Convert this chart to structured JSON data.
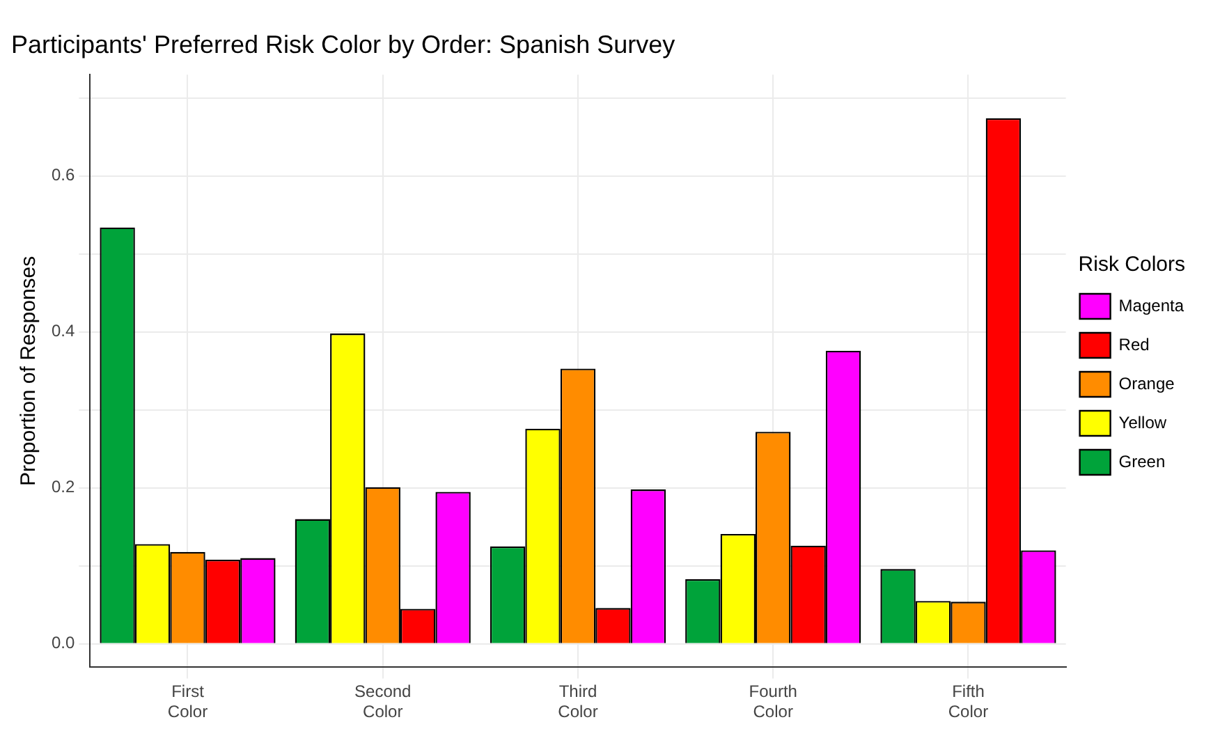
{
  "chart_data": {
    "type": "bar",
    "title": "Participants' Preferred Risk Color by Order: Spanish Survey",
    "ylabel": "Proportion of Responses",
    "legend_title": "Risk Colors",
    "categories": [
      "First Color",
      "Second Color",
      "Third Color",
      "Fourth Color",
      "Fifth Color"
    ],
    "series": [
      {
        "name": "Green",
        "color": "#00a33a",
        "values": [
          0.534,
          0.16,
          0.125,
          0.083,
          0.096
        ]
      },
      {
        "name": "Yellow",
        "color": "#ffff00",
        "values": [
          0.128,
          0.398,
          0.276,
          0.141,
          0.055
        ]
      },
      {
        "name": "Orange",
        "color": "#ff8c00",
        "values": [
          0.118,
          0.201,
          0.353,
          0.272,
          0.054
        ]
      },
      {
        "name": "Red",
        "color": "#ff0000",
        "values": [
          0.108,
          0.045,
          0.046,
          0.126,
          0.674
        ]
      },
      {
        "name": "Magenta",
        "color": "#ff00ff",
        "values": [
          0.11,
          0.195,
          0.198,
          0.376,
          0.12
        ]
      }
    ],
    "ylim": [
      -0.03,
      0.73
    ],
    "yticks": [
      {
        "value": 0,
        "label": "0.0"
      },
      {
        "value": 0.1,
        "label": null
      },
      {
        "value": 0.2,
        "label": "0.2"
      },
      {
        "value": 0.3,
        "label": null
      },
      {
        "value": 0.4,
        "label": "0.4"
      },
      {
        "value": 0.5,
        "label": null
      },
      {
        "value": 0.6,
        "label": "0.6"
      },
      {
        "value": 0.7,
        "label": null
      }
    ],
    "grid": true,
    "legend": "right"
  }
}
